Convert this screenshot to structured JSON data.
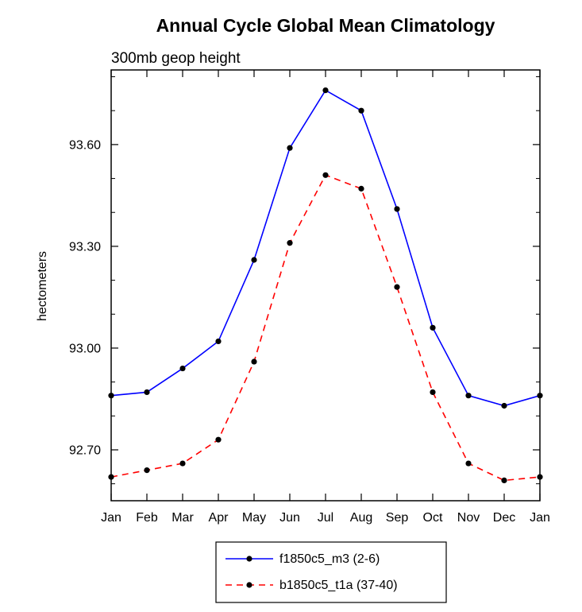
{
  "chart_data": {
    "type": "line",
    "title": "Annual Cycle Global Mean Climatology",
    "subtitle": "300mb geop height",
    "ylabel": "hectometers",
    "categories": [
      "Jan",
      "Feb",
      "Mar",
      "Apr",
      "May",
      "Jun",
      "Jul",
      "Aug",
      "Sep",
      "Oct",
      "Nov",
      "Dec",
      "Jan"
    ],
    "ylim": [
      92.55,
      93.82
    ],
    "yticks": [
      92.7,
      93.0,
      93.3,
      93.6
    ],
    "ytick_labels": [
      "92.70",
      "93.00",
      "93.30",
      "93.60"
    ],
    "y_minor_step": 0.1,
    "grid": false,
    "legend_position": "bottom-center-boxed",
    "axis_color": "#000000",
    "marker_color": "#000000",
    "series": [
      {
        "name": "f1850c5_m3 (2-6)",
        "color": "#0000ff",
        "style": "solid",
        "marker": "filled-circle",
        "values": [
          92.86,
          92.87,
          92.94,
          93.02,
          93.26,
          93.59,
          93.76,
          93.7,
          93.41,
          93.06,
          92.86,
          92.83,
          92.86
        ]
      },
      {
        "name": "b1850c5_t1a (37-40)",
        "color": "#ff0000",
        "style": "dashed",
        "marker": "filled-circle",
        "values": [
          92.62,
          92.64,
          92.66,
          92.73,
          92.96,
          93.31,
          93.51,
          93.47,
          93.18,
          92.87,
          92.66,
          92.61,
          92.62
        ]
      }
    ]
  }
}
